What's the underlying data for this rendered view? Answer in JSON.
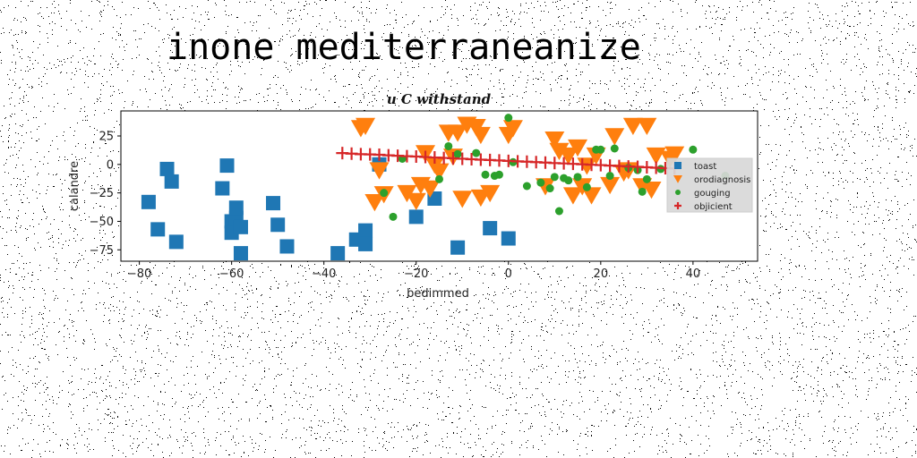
{
  "page_title": "inone mediterraneanize",
  "chart_data": {
    "type": "scatter",
    "title": "u C withstand",
    "xlabel": "bedimmed",
    "ylabel": "calandre",
    "xlim": [
      -84,
      54
    ],
    "ylim": [
      -85,
      47
    ],
    "x_ticks": [
      -80,
      -60,
      -40,
      -20,
      0,
      20,
      40
    ],
    "y_ticks": [
      25,
      0,
      -25,
      -50,
      -75
    ],
    "x_tick_labels": [
      "−80",
      "−60",
      "−40",
      "−20",
      "0",
      "20",
      "40"
    ],
    "y_tick_labels": [
      "25",
      "0",
      "−25",
      "−50",
      "−75"
    ],
    "grid": false,
    "legend_position": "right",
    "series": [
      {
        "name": "toast",
        "marker": "square",
        "color": "#1f77b4",
        "x": [
          -78,
          -76,
          -74,
          -73,
          -72,
          -62,
          -61,
          -60,
          -60,
          -59,
          -59,
          -58,
          -58,
          -51,
          -50,
          -48,
          -37,
          -33,
          -31,
          -31,
          -28,
          -20,
          -16,
          -11,
          -4,
          0
        ],
        "y": [
          -33,
          -57,
          -4,
          -15,
          -68,
          -21,
          -1,
          -50,
          -60,
          -47,
          -38,
          -55,
          -78,
          -34,
          -53,
          -72,
          -78,
          -66,
          -58,
          -70,
          0,
          -46,
          -30,
          -73,
          -56,
          -65
        ]
      },
      {
        "name": "orodiagnosis",
        "marker": "triangle-down",
        "color": "#ff7f0e",
        "x": [
          -32,
          -31,
          -29,
          -28,
          -27,
          -22,
          -20,
          -19,
          -18,
          -17,
          -16,
          -15,
          -13,
          -12,
          -11,
          -10,
          -9,
          -7,
          -6,
          -6,
          -4,
          0,
          1,
          8,
          10,
          11,
          13,
          14,
          15,
          16,
          17,
          18,
          19,
          22,
          23,
          25,
          26,
          27,
          29,
          30,
          31,
          32,
          35,
          36
        ],
        "y": [
          32,
          34,
          -33,
          -5,
          -26,
          -25,
          -32,
          -18,
          10,
          -21,
          0,
          -6,
          28,
          7,
          28,
          -30,
          35,
          33,
          26,
          -29,
          -25,
          26,
          32,
          -19,
          22,
          12,
          8,
          -27,
          15,
          -19,
          -1,
          -27,
          8,
          -18,
          25,
          -7,
          -5,
          34,
          -19,
          34,
          -22,
          8,
          5,
          9
        ]
      },
      {
        "name": "gouging",
        "marker": "circle",
        "color": "#2ca02c",
        "x": [
          -27,
          -25,
          -23,
          -15,
          -13,
          -11,
          -7,
          -5,
          -3,
          -2,
          0,
          1,
          4,
          7,
          9,
          10,
          11,
          12,
          13,
          15,
          17,
          19,
          20,
          22,
          23,
          26,
          28,
          29,
          30,
          33,
          40,
          47
        ],
        "y": [
          -25,
          -46,
          5,
          -13,
          16,
          9,
          10,
          -9,
          -10,
          -9,
          41,
          2,
          -19,
          -16,
          -21,
          -11,
          -41,
          -12,
          -14,
          -11,
          -20,
          13,
          13,
          -10,
          14,
          -3,
          -5,
          -24,
          -13,
          -4,
          13,
          -10
        ]
      },
      {
        "name": "objicient",
        "marker": "plus",
        "color": "#d62728",
        "x": [
          -36,
          -34,
          -32,
          -30,
          -28,
          -26,
          -24,
          -22,
          -20,
          -18,
          -16,
          -14,
          -12,
          -10,
          -8,
          -6,
          -4,
          -2,
          0,
          2,
          4,
          6,
          8,
          10,
          12,
          14,
          16,
          18,
          20,
          22,
          24,
          26,
          28,
          30,
          32,
          34,
          36
        ],
        "y": [
          10,
          9.5,
          9,
          8.8,
          8.5,
          8,
          7.6,
          7.2,
          6.9,
          6.5,
          6.1,
          5.7,
          5.4,
          5,
          4.6,
          4.2,
          3.9,
          3.5,
          3.1,
          2.7,
          2.4,
          2,
          1.6,
          1.2,
          0.9,
          0.5,
          0.1,
          -0.3,
          -0.6,
          -1,
          -1.4,
          -1.8,
          -2.1,
          -2.5,
          -2.9,
          -3.3,
          -3.6
        ]
      }
    ]
  }
}
